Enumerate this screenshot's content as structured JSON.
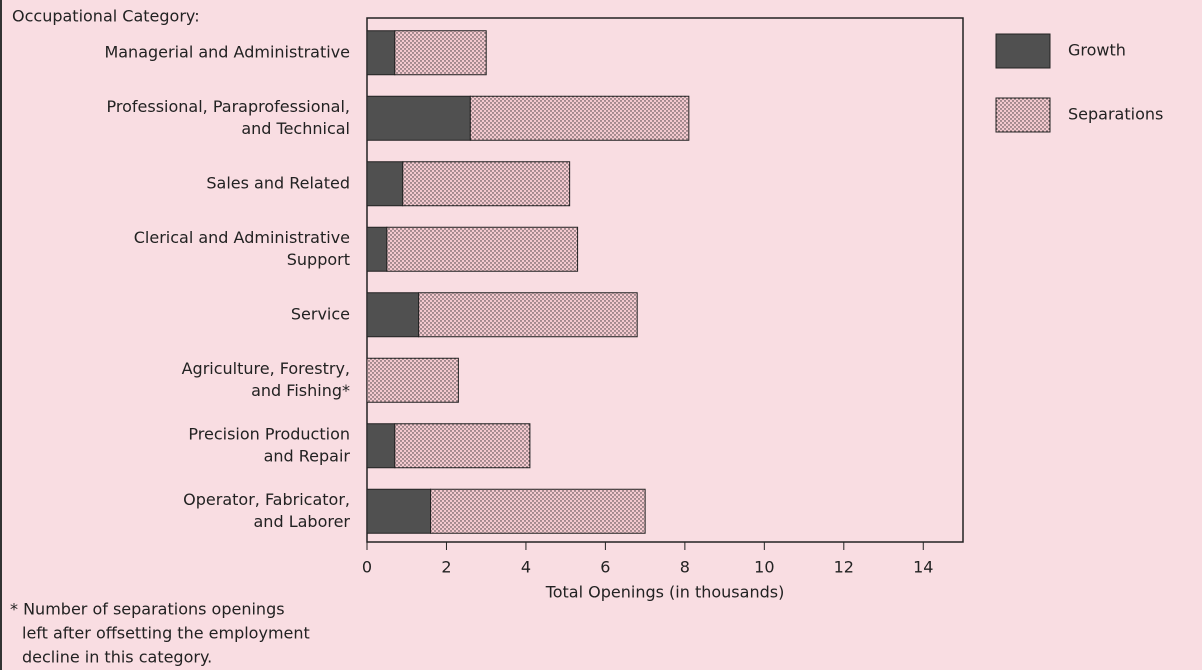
{
  "chart_data": {
    "type": "stacked-barh",
    "category_heading": "Occupational Category:",
    "categories": [
      [
        "Managerial and Administrative"
      ],
      [
        "Professional, Paraprofessional,",
        "and Technical"
      ],
      [
        "Sales and Related"
      ],
      [
        "Clerical and Administrative",
        "Support"
      ],
      [
        "Service"
      ],
      [
        "Agriculture, Forestry,",
        "and Fishing*"
      ],
      [
        "Precision Production",
        "and Repair"
      ],
      [
        "Operator, Fabricator,",
        "and Laborer"
      ]
    ],
    "series": [
      {
        "name": "Growth",
        "color": "#505050",
        "values": [
          0.7,
          2.6,
          0.9,
          0.5,
          1.3,
          0,
          0.7,
          1.6
        ]
      },
      {
        "name": "Separations",
        "color": "#f4c9cf",
        "values": [
          2.3,
          5.5,
          4.2,
          4.8,
          5.5,
          2.3,
          3.4,
          5.4
        ]
      }
    ],
    "xlabel": "Total Openings (in thousands)",
    "xlim": [
      0,
      15
    ],
    "xticks": [
      0,
      2,
      4,
      6,
      8,
      10,
      12,
      14
    ],
    "note": [
      "* Number of separations openings",
      "left after offsetting the employment",
      "decline in this category."
    ]
  }
}
